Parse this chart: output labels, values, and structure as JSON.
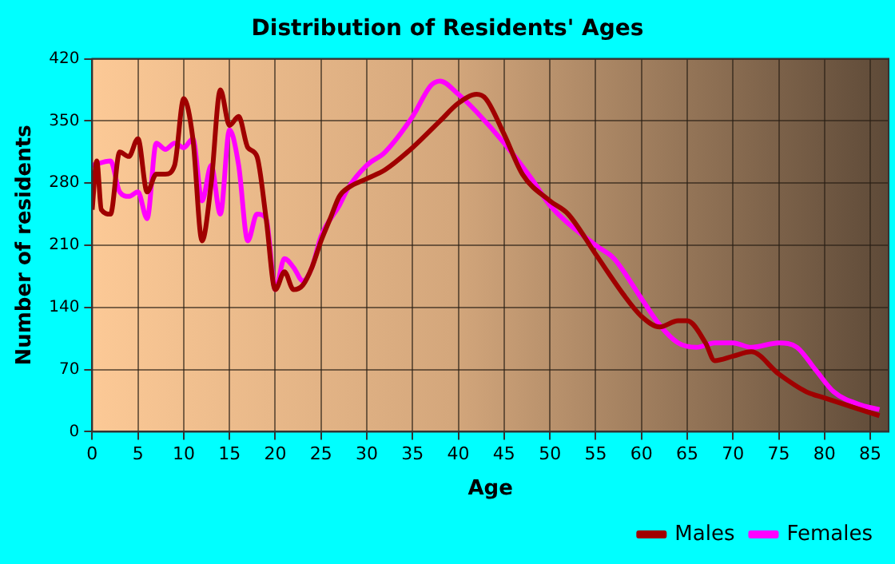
{
  "chart_data": {
    "type": "line",
    "title": "Distribution of Residents' Ages",
    "xlabel": "Age",
    "ylabel": "Number of residents",
    "xlim": [
      0,
      87
    ],
    "xticks": [
      0,
      5,
      10,
      15,
      20,
      25,
      30,
      35,
      40,
      45,
      50,
      55,
      60,
      65,
      70,
      75,
      80,
      85
    ],
    "ylim": [
      0,
      420
    ],
    "yticks": [
      0,
      70,
      140,
      210,
      280,
      350,
      420
    ],
    "grid": true,
    "legend": "bottom right",
    "marker": "none",
    "line_style": "solid",
    "series": [
      {
        "name": "Males",
        "color": "#a00000",
        "x": [
          0,
          0.5,
          1,
          2,
          3,
          4,
          5,
          6,
          7,
          8,
          9,
          10,
          11,
          12,
          13,
          14,
          15,
          16,
          17,
          18,
          19,
          20,
          21,
          22,
          23,
          24,
          25,
          26,
          27,
          28,
          30,
          32,
          35,
          38,
          40,
          42,
          43,
          45,
          47,
          50,
          52,
          55,
          58,
          60,
          62,
          64,
          65,
          67,
          68,
          70,
          72,
          75,
          78,
          80,
          83,
          86
        ],
        "values": [
          250,
          305,
          250,
          245,
          315,
          310,
          330,
          270,
          290,
          290,
          300,
          375,
          330,
          215,
          280,
          385,
          345,
          355,
          320,
          310,
          240,
          160,
          180,
          160,
          165,
          185,
          215,
          240,
          265,
          275,
          285,
          295,
          320,
          350,
          370,
          380,
          375,
          335,
          290,
          260,
          245,
          200,
          155,
          130,
          118,
          125,
          125,
          100,
          80,
          85,
          90,
          65,
          45,
          38,
          28,
          18
        ]
      },
      {
        "name": "Females",
        "color": "#ff00ff",
        "x": [
          0,
          2,
          3,
          4,
          5,
          6,
          7,
          8,
          9,
          10,
          11,
          12,
          13,
          14,
          15,
          16,
          17,
          18,
          19,
          20,
          21,
          22,
          23,
          24,
          25,
          27,
          28,
          30,
          32,
          35,
          37,
          38,
          40,
          42,
          45,
          48,
          50,
          55,
          57,
          60,
          62,
          64,
          66,
          68,
          70,
          72,
          75,
          77,
          79,
          81,
          84,
          86
        ],
        "values": [
          300,
          305,
          270,
          265,
          270,
          240,
          325,
          318,
          325,
          320,
          330,
          260,
          300,
          245,
          340,
          300,
          215,
          245,
          240,
          160,
          195,
          185,
          170,
          185,
          220,
          255,
          275,
          300,
          315,
          355,
          390,
          395,
          380,
          360,
          325,
          285,
          255,
          210,
          195,
          150,
          120,
          100,
          95,
          100,
          100,
          95,
          100,
          95,
          70,
          45,
          30,
          25
        ]
      }
    ]
  }
}
